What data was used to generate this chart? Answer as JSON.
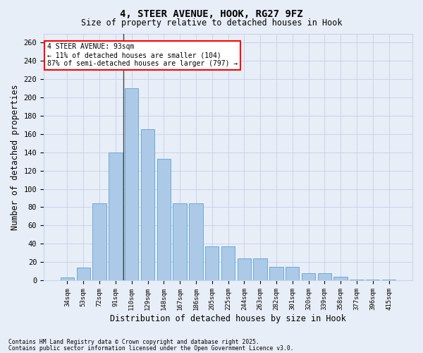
{
  "title1": "4, STEER AVENUE, HOOK, RG27 9FZ",
  "title2": "Size of property relative to detached houses in Hook",
  "xlabel": "Distribution of detached houses by size in Hook",
  "ylabel": "Number of detached properties",
  "categories": [
    "34sqm",
    "53sqm",
    "72sqm",
    "91sqm",
    "110sqm",
    "129sqm",
    "148sqm",
    "167sqm",
    "186sqm",
    "205sqm",
    "225sqm",
    "244sqm",
    "263sqm",
    "282sqm",
    "301sqm",
    "320sqm",
    "339sqm",
    "358sqm",
    "377sqm",
    "396sqm",
    "415sqm"
  ],
  "values": [
    3,
    14,
    84,
    140,
    210,
    165,
    133,
    84,
    84,
    37,
    37,
    24,
    24,
    15,
    15,
    8,
    8,
    4,
    1,
    1,
    1
  ],
  "bar_color": "#adc9e8",
  "bar_edge_color": "#6aaad4",
  "annotation_line1": "4 STEER AVENUE: 93sqm",
  "annotation_line2": "← 11% of detached houses are smaller (104)",
  "annotation_line3": "87% of semi-detached houses are larger (797) →",
  "annotation_box_facecolor": "white",
  "annotation_box_edgecolor": "red",
  "vline_color": "#444444",
  "grid_color": "#c8d4e8",
  "background_color": "#e8eef8",
  "footer1": "Contains HM Land Registry data © Crown copyright and database right 2025.",
  "footer2": "Contains public sector information licensed under the Open Government Licence v3.0.",
  "ylim": [
    0,
    270
  ],
  "yticks": [
    0,
    20,
    40,
    60,
    80,
    100,
    120,
    140,
    160,
    180,
    200,
    220,
    240,
    260
  ]
}
